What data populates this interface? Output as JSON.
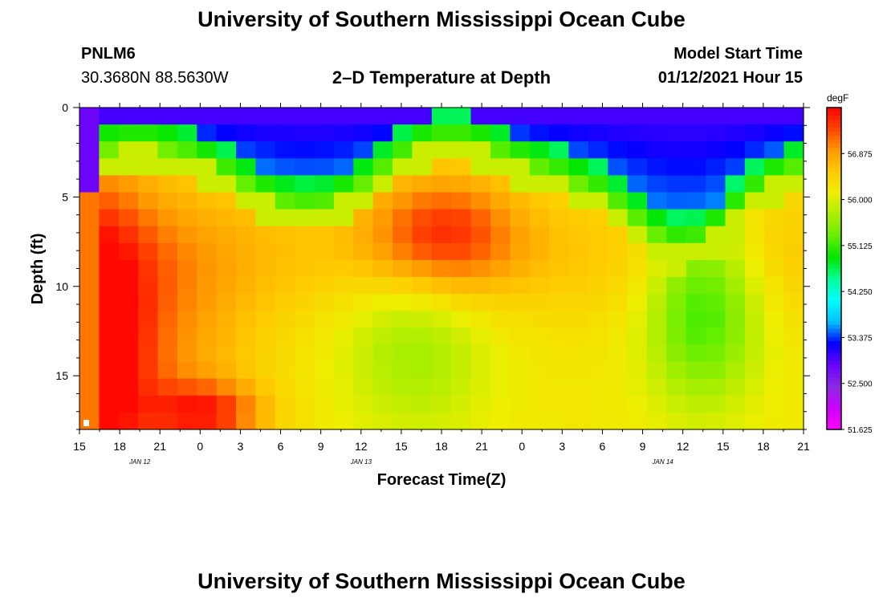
{
  "page": {
    "title_top": "University of Southern Mississippi Ocean Cube",
    "title_bottom": "University of Southern Mississippi Ocean Cube",
    "station_id": "PNLM6",
    "station_coords": "30.3680N 88.5630W",
    "plot_title": "2–D Temperature at Depth",
    "model_start_label": "Model Start Time",
    "model_start_value": "01/12/2021 Hour 15"
  },
  "chart_data": {
    "type": "heatmap",
    "title": "2–D Temperature at Depth",
    "xlabel": "Forecast Time(Z)",
    "ylabel": "Depth (ft)",
    "x_hours": [
      0,
      54
    ],
    "y_range": [
      0,
      18
    ],
    "y_ticks": [
      0,
      5,
      10,
      15
    ],
    "x_tick_labels": [
      "15",
      "18",
      "21",
      "0",
      "3",
      "6",
      "9",
      "12",
      "15",
      "18",
      "21",
      "0",
      "3",
      "6",
      "9",
      "12",
      "15",
      "18",
      "21"
    ],
    "date_labels": [
      {
        "text": "JAN 12",
        "hour": 4.5
      },
      {
        "text": "JAN 13",
        "hour": 21
      },
      {
        "text": "JAN 14",
        "hour": 43.5
      }
    ],
    "colorbar": {
      "unit": "degF",
      "min": 51.625,
      "max": 57.75,
      "tick_labels": [
        "56.875",
        "56.000",
        "55.125",
        "54.250",
        "53.375",
        "52.500",
        "51.625"
      ],
      "colors": [
        "#ff00ff",
        "#cc00ff",
        "#8a2be2",
        "#6a00ff",
        "#0000ff",
        "#00c0ff",
        "#00ffff",
        "#00ff99",
        "#00e600",
        "#66ee00",
        "#aaee00",
        "#eeee00",
        "#ffcc00",
        "#ff9900",
        "#ff4400",
        "#ff0000"
      ]
    },
    "grid_note": "Temperatures (degF) sampled every 1.5 h (37 columns) by 1 ft depth (19 rows); row 0 = surface.",
    "grid": []
  }
}
